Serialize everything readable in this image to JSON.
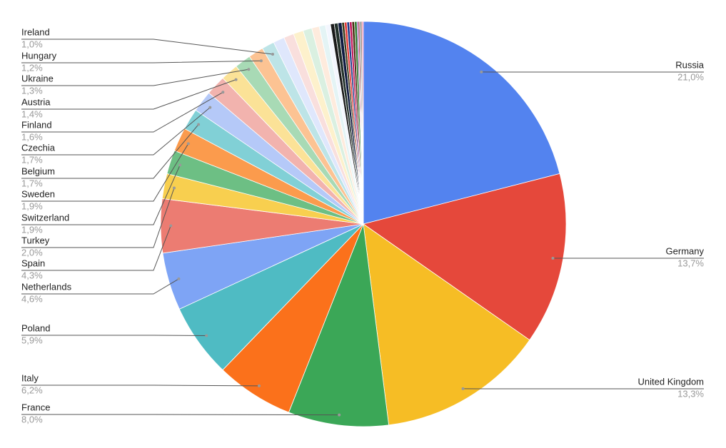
{
  "chart_data": {
    "type": "pie",
    "categories": [
      "Russia",
      "Germany",
      "United Kingdom",
      "France",
      "Italy",
      "Poland",
      "Netherlands",
      "Spain",
      "Turkey",
      "Switzerland",
      "Sweden",
      "Belgium",
      "Czechia",
      "Finland",
      "Austria",
      "Ukraine",
      "Hungary",
      "Ireland",
      null,
      null,
      null,
      null,
      null,
      null,
      null,
      null,
      null,
      null,
      null,
      null,
      null,
      null,
      null,
      null,
      null,
      null,
      null,
      null,
      null
    ],
    "values": [
      21.0,
      13.7,
      13.3,
      8.0,
      6.2,
      5.9,
      4.6,
      4.3,
      2.0,
      1.9,
      1.9,
      1.7,
      1.7,
      1.6,
      1.4,
      1.3,
      1.2,
      1.0,
      0.9,
      0.8,
      0.8,
      0.7,
      0.6,
      0.5,
      0.4,
      0.3,
      0.3,
      0.3,
      0.2,
      0.2,
      0.2,
      0.2,
      0.2,
      0.2,
      0.1,
      0.1,
      0.1,
      0.1,
      0.1
    ],
    "value_labels": [
      "21,0%",
      "13,7%",
      "13,3%",
      "8,0%",
      "6,2%",
      "5,9%",
      "4,6%",
      "4,3%",
      "2,0%",
      "1,9%",
      "1,9%",
      "1,7%",
      "1,7%",
      "1,6%",
      "1,4%",
      "1,3%",
      "1,2%",
      "1,0%",
      null,
      null,
      null,
      null,
      null,
      null,
      null,
      null,
      null,
      null,
      null,
      null,
      null,
      null,
      null,
      null,
      null,
      null,
      null,
      null,
      null
    ],
    "colors": [
      "#5383ef",
      "#e5483b",
      "#f6bd25",
      "#3ba757",
      "#fb711b",
      "#4fbbc3",
      "#7ea4f5",
      "#ec7c72",
      "#f8cf4f",
      "#6dbf84",
      "#fb9b4d",
      "#81d0d6",
      "#b5c9f8",
      "#f2b3ae",
      "#fbe297",
      "#a8dab5",
      "#fcc393",
      "#bde4e7",
      "#dfe7fc",
      "#f9dfdd",
      "#fdf1cc",
      "#daf0e1",
      "#feebdd",
      "#e4f4f5",
      "#f3f6fe",
      "#1a1a1a",
      "#22302a",
      "#0f1a40",
      "#3a3a1a",
      "#e53935",
      "#1e3a8a",
      "#c2185b",
      "#4a2a10",
      "#2e7d32",
      "#7b1fa2",
      "#b71c1c",
      "#455a64",
      "#8d6e63",
      "#f06292"
    ]
  }
}
